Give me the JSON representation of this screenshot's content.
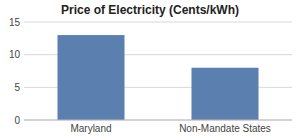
{
  "chart_data": {
    "type": "bar",
    "title": "Price of Electricity (Cents/kWh)",
    "categories": [
      "Maryland",
      "Non-Mandate States"
    ],
    "values": [
      13.0,
      8.0
    ],
    "color": "#5b7fae",
    "ylim": [
      0,
      15
    ],
    "yticks": [
      0,
      5,
      10,
      15
    ],
    "grid": true
  }
}
